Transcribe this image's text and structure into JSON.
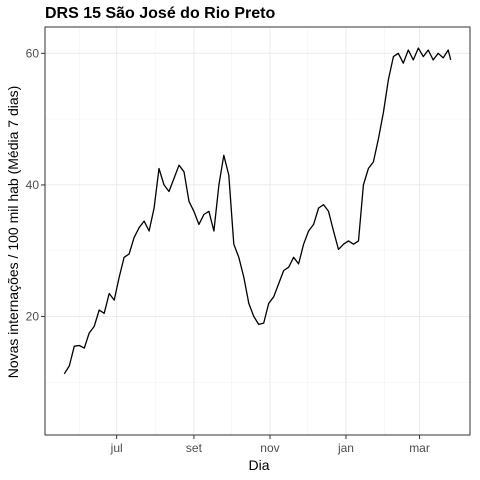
{
  "chart_data": {
    "type": "line",
    "title": "DRS 15 São José do Rio Preto",
    "xlabel": "Dia",
    "ylabel": "Novas internações / 100 mil hab (Média 7 dias)",
    "x_tick_labels": [
      "jul",
      "set",
      "nov",
      "jan",
      "mar"
    ],
    "y_tick_labels": [
      "20",
      "40",
      "60"
    ],
    "y_ticks": [
      20,
      40,
      60
    ],
    "ylim": [
      2,
      64
    ],
    "grid": true,
    "line_color": "#000000",
    "series": [
      {
        "x": [
          "2020-05-20",
          "2020-05-24",
          "2020-05-28",
          "2020-06-01",
          "2020-06-05",
          "2020-06-09",
          "2020-06-13",
          "2020-06-17",
          "2020-06-21",
          "2020-06-25",
          "2020-06-29",
          "2020-07-03",
          "2020-07-07",
          "2020-07-11",
          "2020-07-15",
          "2020-07-19",
          "2020-07-23",
          "2020-07-27",
          "2020-07-31",
          "2020-08-04",
          "2020-08-08",
          "2020-08-12",
          "2020-08-16",
          "2020-08-20",
          "2020-08-24",
          "2020-08-28",
          "2020-09-01",
          "2020-09-05",
          "2020-09-09",
          "2020-09-13",
          "2020-09-17",
          "2020-09-21",
          "2020-09-25",
          "2020-09-29",
          "2020-10-03",
          "2020-10-07",
          "2020-10-11",
          "2020-10-15",
          "2020-10-19",
          "2020-10-23",
          "2020-10-27",
          "2020-10-31",
          "2020-11-04",
          "2020-11-08",
          "2020-11-12",
          "2020-11-16",
          "2020-11-20",
          "2020-11-24",
          "2020-11-28",
          "2020-12-02",
          "2020-12-06",
          "2020-12-10",
          "2020-12-14",
          "2020-12-18",
          "2020-12-22",
          "2020-12-26",
          "2020-12-30",
          "2021-01-03",
          "2021-01-07",
          "2021-01-11",
          "2021-01-15",
          "2021-01-19",
          "2021-01-23",
          "2021-01-27",
          "2021-01-31",
          "2021-02-04",
          "2021-02-08",
          "2021-02-12",
          "2021-02-16",
          "2021-02-20",
          "2021-02-24",
          "2021-02-28",
          "2021-03-04",
          "2021-03-08",
          "2021-03-12",
          "2021-03-16",
          "2021-03-20",
          "2021-03-24",
          "2021-03-26"
        ],
        "values": [
          11.3,
          12.5,
          15.5,
          15.6,
          15.2,
          17.5,
          18.5,
          21.0,
          20.5,
          23.5,
          22.5,
          26.0,
          29.0,
          29.5,
          32.0,
          33.5,
          34.5,
          33.0,
          36.5,
          42.5,
          40.0,
          39.0,
          41.0,
          43.0,
          42.0,
          37.5,
          36.0,
          34.0,
          35.5,
          36.0,
          33.0,
          40.0,
          44.5,
          41.5,
          31.0,
          29.0,
          26.0,
          22.0,
          20.0,
          18.8,
          19.0,
          22.0,
          23.0,
          25.0,
          27.0,
          27.5,
          29.0,
          28.0,
          31.0,
          33.0,
          34.0,
          36.5,
          37.0,
          36.0,
          33.0,
          30.2,
          31.0,
          31.5,
          31.0,
          31.5,
          40.0,
          42.5,
          43.5,
          47.0,
          51.0,
          56.0,
          59.5,
          60.0,
          58.5,
          60.5,
          59.0,
          60.8,
          59.5,
          60.5,
          59.0,
          60.0,
          59.3,
          60.5,
          59.0
        ]
      }
    ]
  }
}
